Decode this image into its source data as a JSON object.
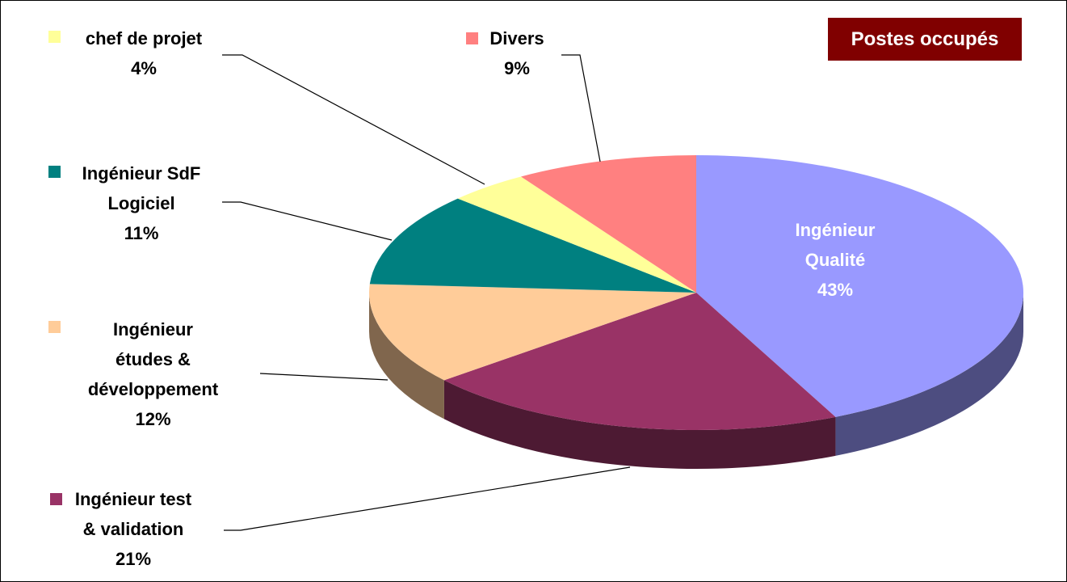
{
  "chart_data": {
    "type": "pie",
    "title": "Postes occupés",
    "categories": [
      "Ingénieur Qualité",
      "Ingénieur test & validation",
      "Ingénieur études & développement",
      "Ingénieur SdF Logiciel",
      "chef de projet",
      "Divers"
    ],
    "values": [
      43,
      21,
      12,
      11,
      4,
      9
    ],
    "value_labels": [
      "43%",
      "21%",
      "12%",
      "11%",
      "4%",
      "9%"
    ],
    "colors": [
      "#9999ff",
      "#993366",
      "#ffcc99",
      "#008080",
      "#ffff99",
      "#ff8080"
    ]
  }
}
